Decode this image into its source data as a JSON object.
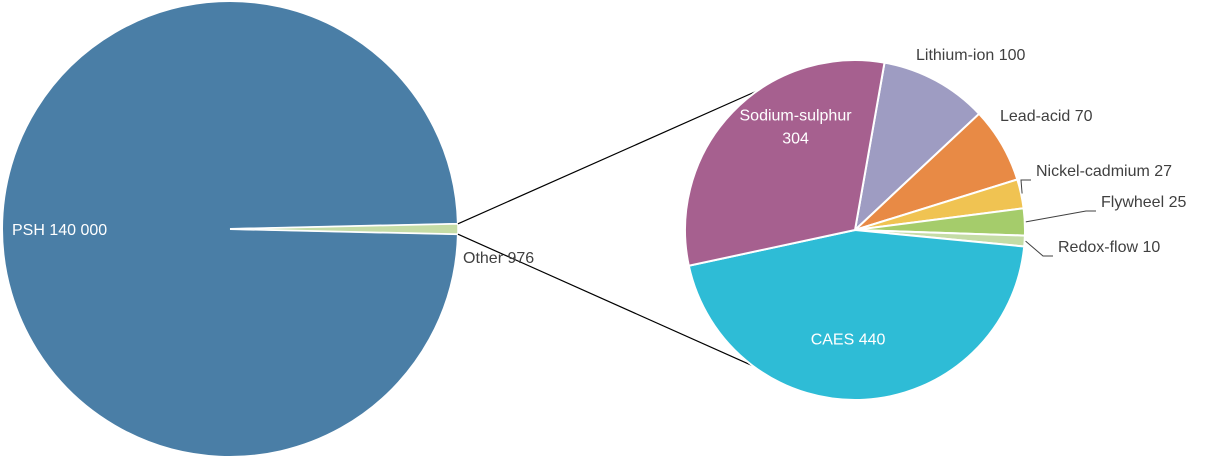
{
  "chart_data": {
    "type": "pie",
    "subtype": "pie-of-pie",
    "unit": "",
    "main": {
      "slices": [
        {
          "label": "PSH",
          "value_text": "140 000",
          "value": 140000,
          "color": "#4a7ea6"
        },
        {
          "label": "Other",
          "value_text": "976",
          "value": 976,
          "color": "#c5dca6"
        }
      ]
    },
    "detail": {
      "of": "Other",
      "slices": [
        {
          "label": "Lithium-ion",
          "value_text": "100",
          "value": 100,
          "color": "#9e9cc2"
        },
        {
          "label": "Lead-acid",
          "value_text": "70",
          "value": 70,
          "color": "#e88a45"
        },
        {
          "label": "Nickel-cadmium",
          "value_text": "27",
          "value": 27,
          "color": "#f0c352"
        },
        {
          "label": "Flywheel",
          "value_text": "25",
          "value": 25,
          "color": "#a5cc6b"
        },
        {
          "label": "Redox-flow",
          "value_text": "10",
          "value": 10,
          "color": "#c5dca6"
        },
        {
          "label": "CAES",
          "value_text": "440",
          "value": 440,
          "color": "#2ebcd6"
        },
        {
          "label": "Sodium-sulphur",
          "value_text": "304",
          "value": 304,
          "color": "#a6608f"
        }
      ]
    }
  }
}
